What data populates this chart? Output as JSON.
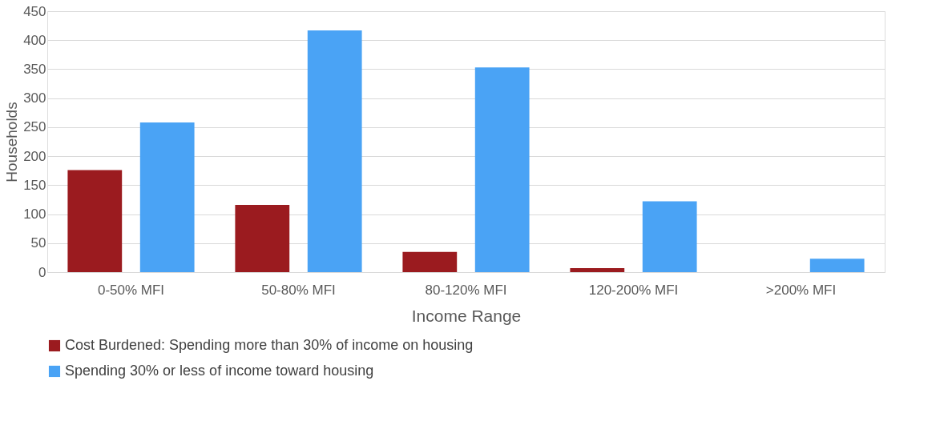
{
  "chart_data": {
    "type": "bar",
    "xlabel": "Income Range",
    "ylabel": "Households",
    "categories": [
      "0-50% MFI",
      "50-80% MFI",
      "80-120% MFI",
      "120-200% MFI",
      ">200% MFI"
    ],
    "series": [
      {
        "name": "Cost Burdened: Spending more than 30% of income on housing",
        "color": "#9b1b1f",
        "values": [
          176,
          116,
          35,
          7,
          0
        ]
      },
      {
        "name": "Spending 30% or less of income toward housing",
        "color": "#4aa3f5",
        "values": [
          258,
          417,
          353,
          122,
          23
        ]
      }
    ],
    "ylim": [
      0,
      450
    ],
    "yticks": [
      0,
      50,
      100,
      150,
      200,
      250,
      300,
      350,
      400,
      450
    ],
    "grid": "y",
    "legend": "bottom"
  }
}
